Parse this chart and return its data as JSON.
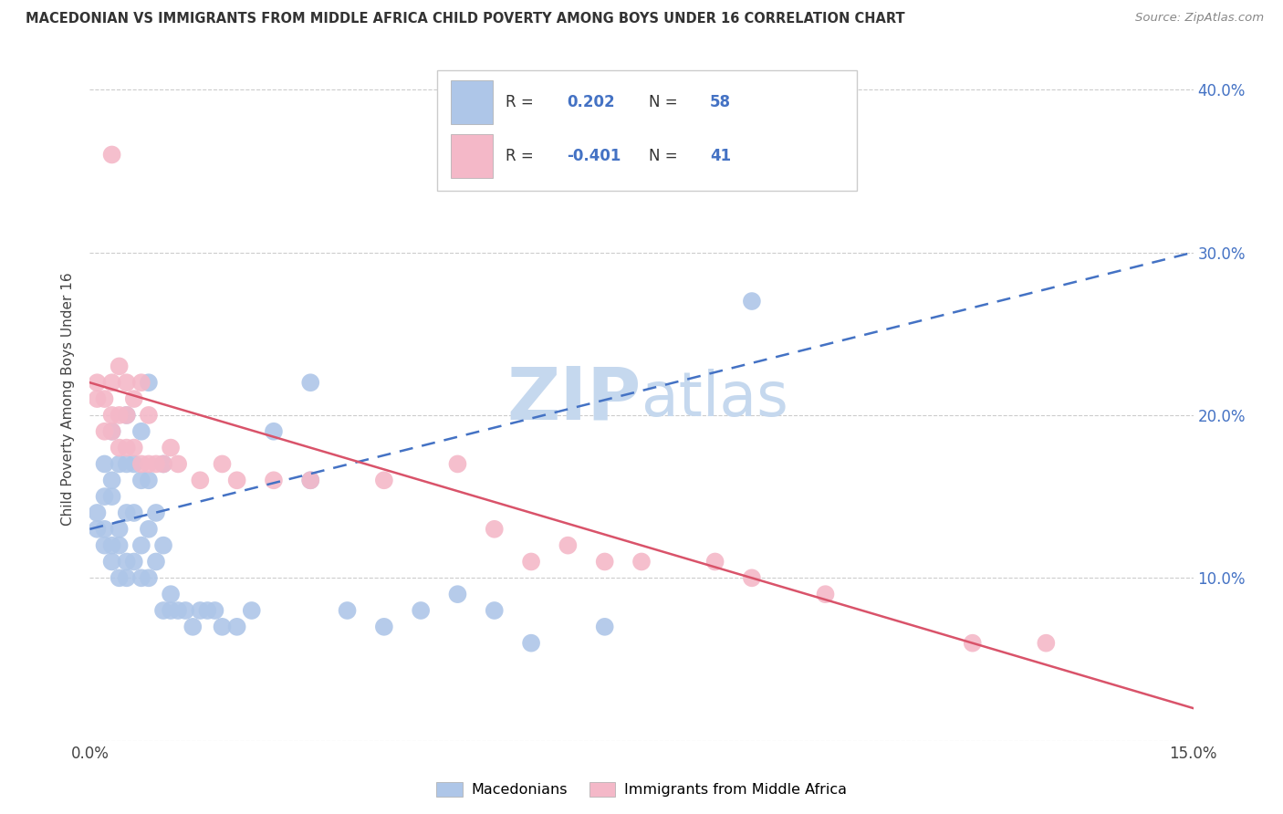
{
  "title": "MACEDONIAN VS IMMIGRANTS FROM MIDDLE AFRICA CHILD POVERTY AMONG BOYS UNDER 16 CORRELATION CHART",
  "source": "Source: ZipAtlas.com",
  "ylabel": "Child Poverty Among Boys Under 16",
  "xlim": [
    0.0,
    0.15
  ],
  "ylim": [
    0.0,
    0.42
  ],
  "yticks": [
    0.0,
    0.1,
    0.2,
    0.3,
    0.4
  ],
  "ytick_labels": [
    "",
    "10.0%",
    "20.0%",
    "30.0%",
    "40.0%"
  ],
  "xticks": [
    0.0,
    0.05,
    0.1,
    0.15
  ],
  "xtick_labels": [
    "0.0%",
    "",
    "",
    "15.0%"
  ],
  "blue_R": 0.202,
  "blue_N": 58,
  "pink_R": -0.401,
  "pink_N": 41,
  "blue_color": "#aec6e8",
  "pink_color": "#f4b8c8",
  "blue_line_color": "#4472c4",
  "pink_line_color": "#d9536a",
  "watermark_color": "#c5d8ee",
  "legend_label_blue": "Macedonians",
  "legend_label_pink": "Immigrants from Middle Africa",
  "blue_line_x0": 0.0,
  "blue_line_y0": 0.13,
  "blue_line_x1": 0.15,
  "blue_line_y1": 0.3,
  "pink_line_x0": 0.0,
  "pink_line_y0": 0.22,
  "pink_line_x1": 0.15,
  "pink_line_y1": 0.02,
  "blue_x": [
    0.001,
    0.001,
    0.002,
    0.002,
    0.002,
    0.002,
    0.003,
    0.003,
    0.003,
    0.003,
    0.003,
    0.004,
    0.004,
    0.004,
    0.004,
    0.005,
    0.005,
    0.005,
    0.005,
    0.005,
    0.006,
    0.006,
    0.006,
    0.007,
    0.007,
    0.007,
    0.007,
    0.008,
    0.008,
    0.008,
    0.008,
    0.009,
    0.009,
    0.01,
    0.01,
    0.01,
    0.011,
    0.011,
    0.012,
    0.013,
    0.014,
    0.015,
    0.016,
    0.017,
    0.018,
    0.02,
    0.022,
    0.025,
    0.03,
    0.03,
    0.035,
    0.04,
    0.045,
    0.05,
    0.055,
    0.06,
    0.07,
    0.09
  ],
  "blue_y": [
    0.13,
    0.14,
    0.12,
    0.13,
    0.15,
    0.17,
    0.11,
    0.12,
    0.15,
    0.16,
    0.19,
    0.1,
    0.12,
    0.13,
    0.17,
    0.1,
    0.11,
    0.14,
    0.17,
    0.2,
    0.11,
    0.14,
    0.17,
    0.1,
    0.12,
    0.16,
    0.19,
    0.1,
    0.13,
    0.16,
    0.22,
    0.11,
    0.14,
    0.08,
    0.12,
    0.17,
    0.08,
    0.09,
    0.08,
    0.08,
    0.07,
    0.08,
    0.08,
    0.08,
    0.07,
    0.07,
    0.08,
    0.19,
    0.16,
    0.22,
    0.08,
    0.07,
    0.08,
    0.09,
    0.08,
    0.06,
    0.07,
    0.27
  ],
  "pink_x": [
    0.001,
    0.001,
    0.002,
    0.002,
    0.003,
    0.003,
    0.003,
    0.003,
    0.004,
    0.004,
    0.004,
    0.005,
    0.005,
    0.005,
    0.006,
    0.006,
    0.007,
    0.007,
    0.008,
    0.008,
    0.009,
    0.01,
    0.011,
    0.012,
    0.015,
    0.018,
    0.02,
    0.025,
    0.03,
    0.04,
    0.05,
    0.055,
    0.06,
    0.065,
    0.07,
    0.075,
    0.085,
    0.09,
    0.1,
    0.12,
    0.13
  ],
  "pink_y": [
    0.21,
    0.22,
    0.19,
    0.21,
    0.19,
    0.2,
    0.22,
    0.36,
    0.18,
    0.2,
    0.23,
    0.18,
    0.2,
    0.22,
    0.18,
    0.21,
    0.17,
    0.22,
    0.17,
    0.2,
    0.17,
    0.17,
    0.18,
    0.17,
    0.16,
    0.17,
    0.16,
    0.16,
    0.16,
    0.16,
    0.17,
    0.13,
    0.11,
    0.12,
    0.11,
    0.11,
    0.11,
    0.1,
    0.09,
    0.06,
    0.06
  ]
}
